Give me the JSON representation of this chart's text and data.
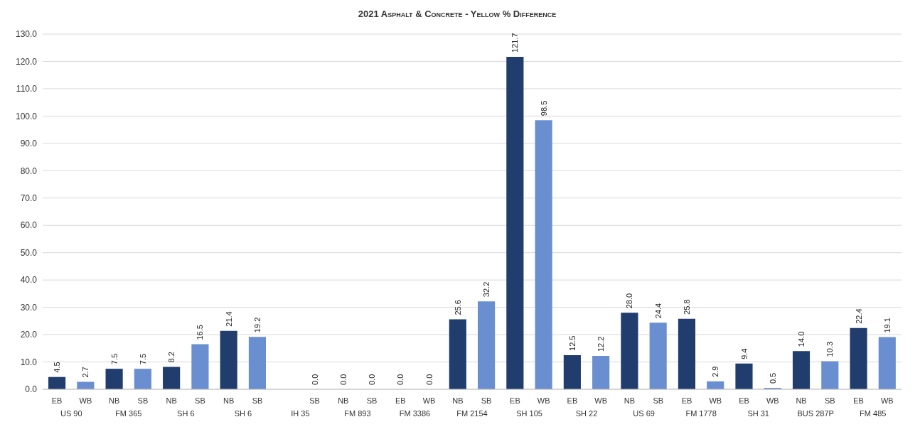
{
  "chart_data": {
    "type": "bar",
    "title": "2021 Asphalt & Concrete - Yellow % Difference",
    "categories": [
      "EB",
      "WB",
      "NB",
      "SB",
      "NB",
      "SB",
      "NB",
      "SB",
      null,
      "SB",
      "NB",
      "SB",
      "EB",
      "WB",
      "NB",
      "SB",
      "EB",
      "WB",
      "EB",
      "WB",
      "NB",
      "SB",
      "EB",
      "WB",
      "EB",
      "WB",
      "NB",
      "SB",
      "EB",
      "WB"
    ],
    "values": [
      4.5,
      2.7,
      7.5,
      7.5,
      8.2,
      16.5,
      21.4,
      19.2,
      null,
      0.0,
      0.0,
      0.0,
      0.0,
      0.0,
      25.6,
      32.2,
      121.7,
      98.5,
      12.5,
      12.2,
      28.0,
      24.4,
      25.8,
      2.9,
      9.4,
      0.5,
      14.0,
      10.3,
      22.4,
      19.1
    ],
    "value_labels": [
      "4.5",
      "2.7",
      "7.5",
      "7.5",
      "8.2",
      "16.5",
      "21.4",
      "19.2",
      null,
      "0.0",
      "0.0",
      "0.0",
      "0.0",
      "0.0",
      "25.6",
      "32.2",
      "121.7",
      "98.5",
      "12.5",
      "12.2",
      "28.0",
      "24.4",
      "25.8",
      "2.9",
      "9.4",
      "0.5",
      "14.0",
      "10.3",
      "22.4",
      "19.1"
    ],
    "colors": [
      "#203d6e",
      "#6a8fd0",
      "#203d6e",
      "#6a8fd0",
      "#203d6e",
      "#6a8fd0",
      "#203d6e",
      "#6a8fd0",
      "#203d6e",
      "#6a8fd0",
      "#203d6e",
      "#6a8fd0",
      "#203d6e",
      "#6a8fd0",
      "#203d6e",
      "#6a8fd0",
      "#203d6e",
      "#6a8fd0",
      "#203d6e",
      "#6a8fd0",
      "#203d6e",
      "#6a8fd0",
      "#203d6e",
      "#6a8fd0",
      "#203d6e",
      "#6a8fd0",
      "#203d6e",
      "#6a8fd0",
      "#203d6e",
      "#6a8fd0"
    ],
    "annotations": [
      "US 90",
      "FM 365",
      "SH 6",
      "SH 6",
      "IH 35",
      "FM 893",
      "FM 3386",
      "FM 2154",
      "SH 105",
      "SH 22",
      "US 69",
      "FM 1778",
      "SH 31",
      "BUS 287P",
      "FM 485"
    ],
    "ylim": [
      0,
      130
    ],
    "yticks": [
      {
        "value": 0,
        "label": "0.0"
      },
      {
        "value": 10,
        "label": "10.0"
      },
      {
        "value": 20,
        "label": "20.0"
      },
      {
        "value": 30,
        "label": "30.0"
      },
      {
        "value": 40,
        "label": "40.0"
      },
      {
        "value": 50,
        "label": "50.0"
      },
      {
        "value": 60,
        "label": "60.0"
      },
      {
        "value": 70,
        "label": "70.0"
      },
      {
        "value": 80,
        "label": "80.0"
      },
      {
        "value": 90,
        "label": "90.0"
      },
      {
        "value": 100,
        "label": "100.0"
      },
      {
        "value": 110,
        "label": "110.0"
      },
      {
        "value": 120,
        "label": "120.0"
      },
      {
        "value": 130,
        "label": "130.0"
      }
    ],
    "grid": "y"
  }
}
